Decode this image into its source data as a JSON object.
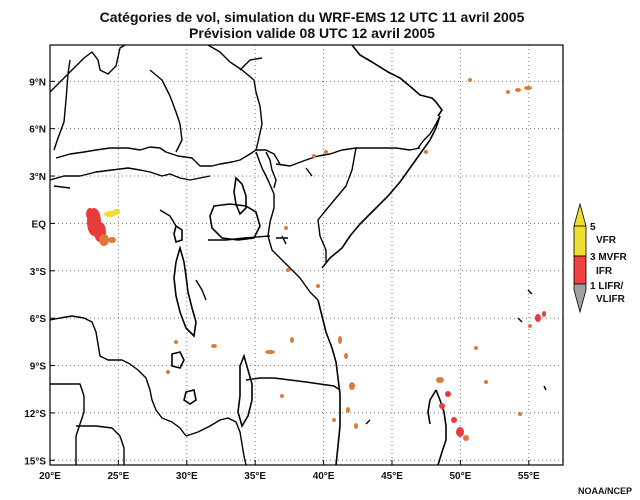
{
  "title_line1": "Catégories de vol, simulation du WRF-EMS 12 UTC 11 avril 2005",
  "title_line2": "Prévision valide 08 UTC 12 avril 2005",
  "credit": "NOAA/NCEP",
  "lon_ticks": [
    {
      "value": 20,
      "label": "20°E"
    },
    {
      "value": 25,
      "label": "25°E"
    },
    {
      "value": 30,
      "label": "30°E"
    },
    {
      "value": 35,
      "label": "35°E"
    },
    {
      "value": 40,
      "label": "40°E"
    },
    {
      "value": 45,
      "label": "45°E"
    },
    {
      "value": 50,
      "label": "50°E"
    },
    {
      "value": 55,
      "label": "55°E"
    }
  ],
  "lat_ticks": [
    {
      "value": 9,
      "label": "9°N"
    },
    {
      "value": 6,
      "label": "6°N"
    },
    {
      "value": 3,
      "label": "3°N"
    },
    {
      "value": 0,
      "label": "EQ"
    },
    {
      "value": -3,
      "label": "3°S"
    },
    {
      "value": -6,
      "label": "6°S"
    },
    {
      "value": -9,
      "label": "9°S"
    },
    {
      "value": -12,
      "label": "12°S"
    },
    {
      "value": -15,
      "label": "15°S"
    }
  ],
  "extent": {
    "lon_min": 20,
    "lon_max": 57.5,
    "lat_min": -15.3,
    "lat_max": 11.3
  },
  "legend": {
    "colors": {
      "vfr": "#f0dc32",
      "ifr": "#f04040",
      "lifr": "#a0a0a0"
    },
    "labels": [
      {
        "key": "t5",
        "text": "5"
      },
      {
        "key": "vfr",
        "text": "VFR"
      },
      {
        "key": "mvfr",
        "text": "3 MVFR"
      },
      {
        "key": "ifr",
        "text": "IFR"
      },
      {
        "key": "lifr",
        "text": "1 LIFR/"
      },
      {
        "key": "vlifr",
        "text": "VLIFR"
      }
    ]
  },
  "colors": {
    "ifr_red": "#e83c3c",
    "mvfr_orange": "#e07838",
    "vfr_yellow": "#f0dc32",
    "lifr_gray": "#a0a0a0"
  }
}
